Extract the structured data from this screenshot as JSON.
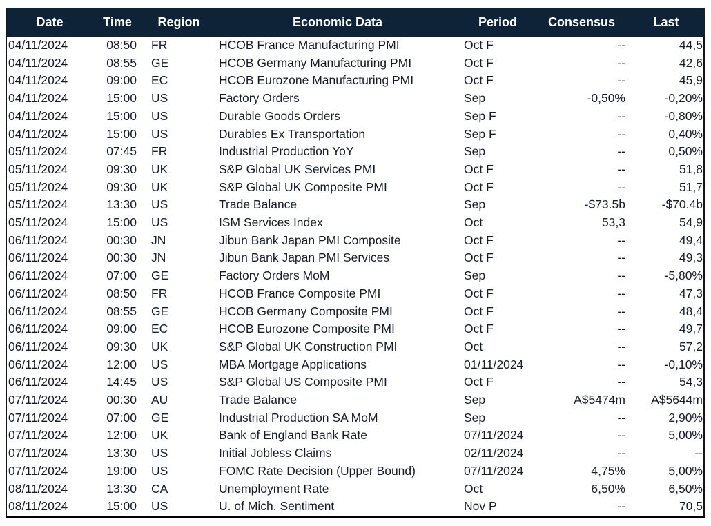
{
  "colors": {
    "header_bg": "#0e2337",
    "header_text": "#ffffff",
    "body_text": "#151d2b",
    "border": "#000000"
  },
  "table": {
    "columns": [
      {
        "key": "date",
        "label": "Date",
        "align": "left"
      },
      {
        "key": "time",
        "label": "Time",
        "align": "right"
      },
      {
        "key": "region",
        "label": "Region",
        "align": "left"
      },
      {
        "key": "econ",
        "label": "Economic Data",
        "align": "left"
      },
      {
        "key": "period",
        "label": "Period",
        "align": "left"
      },
      {
        "key": "consensus",
        "label": "Consensus",
        "align": "right"
      },
      {
        "key": "last",
        "label": "Last",
        "align": "right"
      }
    ],
    "rows": [
      [
        "04/11/2024",
        "08:50",
        "FR",
        "HCOB France Manufacturing PMI",
        "Oct F",
        "--",
        "44,5"
      ],
      [
        "04/11/2024",
        "08:55",
        "GE",
        "HCOB Germany Manufacturing PMI",
        "Oct F",
        "--",
        "42,6"
      ],
      [
        "04/11/2024",
        "09:00",
        "EC",
        "HCOB Eurozone Manufacturing PMI",
        "Oct F",
        "--",
        "45,9"
      ],
      [
        "04/11/2024",
        "15:00",
        "US",
        "Factory Orders",
        "Sep",
        "-0,50%",
        "-0,20%"
      ],
      [
        "04/11/2024",
        "15:00",
        "US",
        "Durable Goods Orders",
        "Sep F",
        "--",
        "-0,80%"
      ],
      [
        "04/11/2024",
        "15:00",
        "US",
        "Durables Ex Transportation",
        "Sep F",
        "--",
        "0,40%"
      ],
      [
        "05/11/2024",
        "07:45",
        "FR",
        "Industrial Production YoY",
        "Sep",
        "--",
        "0,50%"
      ],
      [
        "05/11/2024",
        "09:30",
        "UK",
        "S&P Global UK Services PMI",
        "Oct F",
        "--",
        "51,8"
      ],
      [
        "05/11/2024",
        "09:30",
        "UK",
        "S&P Global UK Composite PMI",
        "Oct F",
        "--",
        "51,7"
      ],
      [
        "05/11/2024",
        "13:30",
        "US",
        "Trade Balance",
        "Sep",
        "-$73.5b",
        "-$70.4b"
      ],
      [
        "05/11/2024",
        "15:00",
        "US",
        "ISM Services Index",
        "Oct",
        "53,3",
        "54,9"
      ],
      [
        "06/11/2024",
        "00:30",
        "JN",
        "Jibun Bank Japan PMI Composite",
        "Oct F",
        "--",
        "49,4"
      ],
      [
        "06/11/2024",
        "00:30",
        "JN",
        "Jibun Bank Japan PMI Services",
        "Oct F",
        "--",
        "49,3"
      ],
      [
        "06/11/2024",
        "07:00",
        "GE",
        "Factory Orders MoM",
        "Sep",
        "--",
        "-5,80%"
      ],
      [
        "06/11/2024",
        "08:50",
        "FR",
        "HCOB France Composite PMI",
        "Oct F",
        "--",
        "47,3"
      ],
      [
        "06/11/2024",
        "08:55",
        "GE",
        "HCOB Germany Composite PMI",
        "Oct F",
        "--",
        "48,4"
      ],
      [
        "06/11/2024",
        "09:00",
        "EC",
        "HCOB Eurozone Composite PMI",
        "Oct F",
        "--",
        "49,7"
      ],
      [
        "06/11/2024",
        "09:30",
        "UK",
        "S&P Global UK Construction PMI",
        "Oct",
        "--",
        "57,2"
      ],
      [
        "06/11/2024",
        "12:00",
        "US",
        "MBA Mortgage Applications",
        "01/11/2024",
        "--",
        "-0,10%"
      ],
      [
        "06/11/2024",
        "14:45",
        "US",
        "S&P Global US Composite PMI",
        "Oct F",
        "--",
        "54,3"
      ],
      [
        "07/11/2024",
        "00:30",
        "AU",
        "Trade Balance",
        "Sep",
        "A$5474m",
        "A$5644m"
      ],
      [
        "07/11/2024",
        "07:00",
        "GE",
        "Industrial Production SA MoM",
        "Sep",
        "--",
        "2,90%"
      ],
      [
        "07/11/2024",
        "12:00",
        "UK",
        "Bank of England Bank Rate",
        "07/11/2024",
        "--",
        "5,00%"
      ],
      [
        "07/11/2024",
        "13:30",
        "US",
        "Initial Jobless Claims",
        "02/11/2024",
        "--",
        "--"
      ],
      [
        "07/11/2024",
        "19:00",
        "US",
        "FOMC Rate Decision (Upper Bound)",
        "07/11/2024",
        "4,75%",
        "5,00%"
      ],
      [
        "08/11/2024",
        "13:30",
        "CA",
        "Unemployment Rate",
        "Oct",
        "6,50%",
        "6,50%"
      ],
      [
        "08/11/2024",
        "15:00",
        "US",
        "U. of Mich. Sentiment",
        "Nov P",
        "--",
        "70,5"
      ]
    ]
  }
}
